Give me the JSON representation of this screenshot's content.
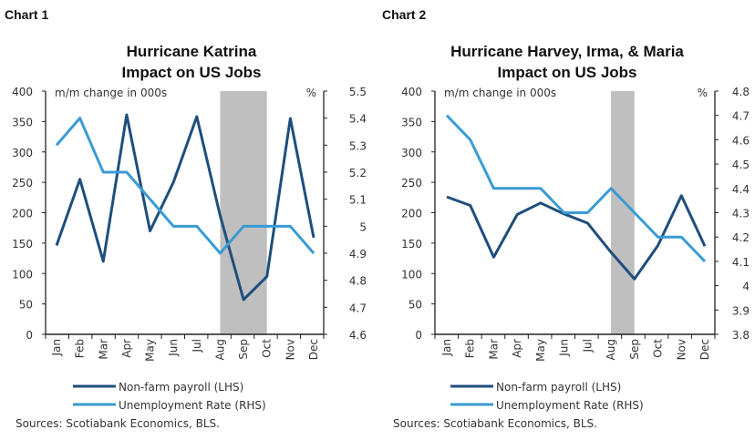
{
  "colors": {
    "payroll": "#1f4e7d",
    "unemployment": "#3a9bd5",
    "shade": "#bfbfbf",
    "axis": "#222222"
  },
  "sources": "Sources: Scotiabank Economics, BLS.",
  "chart_data": [
    {
      "type": "line",
      "header": "Chart 1",
      "title": [
        "Hurricane Katrina",
        "Impact on US Jobs"
      ],
      "left_axis_label": "m/m change in 000s",
      "right_axis_label": "%",
      "categories": [
        "Jan",
        "Feb",
        "Mar",
        "Apr",
        "May",
        "Jun",
        "Jul",
        "Aug",
        "Sep",
        "Oct",
        "Nov",
        "Dec"
      ],
      "ylim_left": [
        0,
        400
      ],
      "yticks_left": [
        "0",
        "50",
        "100",
        "150",
        "200",
        "250",
        "300",
        "350",
        "400"
      ],
      "ylim_right": [
        4.6,
        5.5
      ],
      "yticks_right": [
        "4.6",
        "4.7",
        "4.8",
        "4.9",
        "5",
        "5.1",
        "5.2",
        "5.3",
        "5.4",
        "5.5"
      ],
      "shaded_range": [
        "Aug",
        "Oct"
      ],
      "grid": false,
      "legend_position": "bottom",
      "series": [
        {
          "name": "Non-farm payroll (LHS)",
          "axis": "left",
          "values": [
            146,
            255,
            120,
            361,
            170,
            250,
            358,
            195,
            57,
            95,
            355,
            159
          ]
        },
        {
          "name": "Unemployment Rate (RHS)",
          "axis": "right",
          "values": [
            5.3,
            5.4,
            5.2,
            5.2,
            5.1,
            5.0,
            5.0,
            4.9,
            5.0,
            5.0,
            5.0,
            4.9
          ]
        }
      ]
    },
    {
      "type": "line",
      "header": "Chart 2",
      "title": [
        "Hurricane Harvey, Irma, & Maria",
        "Impact on US Jobs"
      ],
      "left_axis_label": "m/m change in 000s",
      "right_axis_label": "%",
      "categories": [
        "Jan",
        "Feb",
        "Mar",
        "Apr",
        "May",
        "Jun",
        "Jul",
        "Aug",
        "Sep",
        "Oct",
        "Nov",
        "Dec"
      ],
      "ylim_left": [
        0,
        400
      ],
      "yticks_left": [
        "0",
        "50",
        "100",
        "150",
        "200",
        "250",
        "300",
        "350",
        "400"
      ],
      "ylim_right": [
        3.8,
        4.8
      ],
      "yticks_right": [
        "3.8",
        "3.9",
        "4",
        "4.1",
        "4.2",
        "4.3",
        "4.4",
        "4.5",
        "4.6",
        "4.7",
        "4.8"
      ],
      "shaded_range": [
        "Aug",
        "Sep"
      ],
      "grid": false,
      "legend_position": "bottom",
      "series": [
        {
          "name": "Non-farm payroll (LHS)",
          "axis": "left",
          "values": [
            226,
            212,
            127,
            197,
            216,
            198,
            183,
            135,
            91,
            146,
            228,
            145
          ]
        },
        {
          "name": "Unemployment Rate (RHS)",
          "axis": "right",
          "values": [
            4.7,
            4.6,
            4.4,
            4.4,
            4.4,
            4.3,
            4.3,
            4.4,
            4.3,
            4.2,
            4.2,
            4.1
          ]
        }
      ]
    }
  ]
}
